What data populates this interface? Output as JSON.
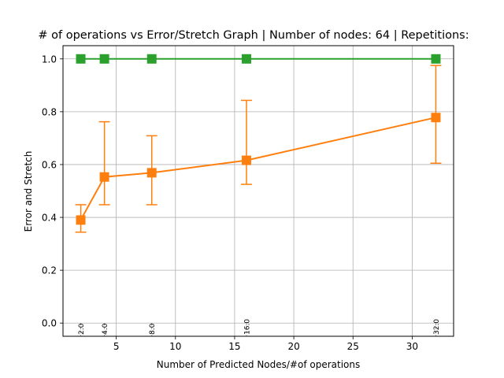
{
  "chart_data": {
    "type": "line",
    "title": "# of operations vs Error/Stretch Graph | Number of nodes: 64 | Repetitions:",
    "xlabel": "Number of Predicted Nodes/#of operations",
    "ylabel": "Error and Stretch",
    "xlim": [
      0.5,
      33.5
    ],
    "ylim": [
      -0.05,
      1.05
    ],
    "grid": true,
    "xticks": [
      5,
      10,
      15,
      20,
      25,
      30
    ],
    "xtick_labels": [
      "5",
      "10",
      "15",
      "20",
      "25",
      "30"
    ],
    "yticks": [
      0.0,
      0.2,
      0.4,
      0.6,
      0.8,
      1.0
    ],
    "ytick_labels": [
      "0.0",
      "0.2",
      "0.4",
      "0.6",
      "0.8",
      "1.0"
    ],
    "x": [
      2,
      4,
      8,
      16,
      32
    ],
    "point_labels": [
      "2.0",
      "4.0",
      "8.0",
      "16.0",
      "32.0"
    ],
    "series": [
      {
        "color": "#2ca02c",
        "values": [
          1.0,
          1.0,
          1.0,
          1.0,
          1.0
        ]
      },
      {
        "color": "#ff7f0e",
        "values": [
          0.39,
          0.553,
          0.569,
          0.616,
          0.778
        ],
        "err_low": [
          0.344,
          0.448,
          0.448,
          0.525,
          0.605
        ],
        "err_high": [
          0.448,
          0.762,
          0.709,
          0.843,
          0.975
        ]
      }
    ]
  }
}
